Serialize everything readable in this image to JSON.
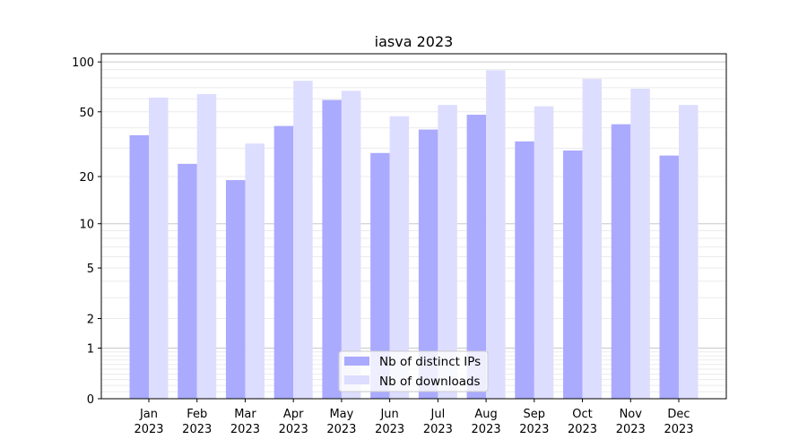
{
  "chart_data": {
    "type": "bar",
    "title": "iasva 2023",
    "xlabel": "",
    "ylabel": "",
    "yscale": "log(1+y)",
    "ylim": [
      0,
      112
    ],
    "yticks": [
      0,
      1,
      2,
      5,
      10,
      20,
      50,
      100
    ],
    "ytick_labels": [
      "0",
      "1",
      "2",
      "5",
      "10",
      "20",
      "50",
      "100"
    ],
    "grid": true,
    "legend_position": "bottom-center",
    "categories": [
      [
        "Jan",
        "2023"
      ],
      [
        "Feb",
        "2023"
      ],
      [
        "Mar",
        "2023"
      ],
      [
        "Apr",
        "2023"
      ],
      [
        "May",
        "2023"
      ],
      [
        "Jun",
        "2023"
      ],
      [
        "Jul",
        "2023"
      ],
      [
        "Aug",
        "2023"
      ],
      [
        "Sep",
        "2023"
      ],
      [
        "Oct",
        "2023"
      ],
      [
        "Nov",
        "2023"
      ],
      [
        "Dec",
        "2023"
      ]
    ],
    "series": [
      {
        "name": "Nb of distinct IPs",
        "color": "#aaaaff",
        "values": [
          36,
          24,
          19,
          41,
          59,
          28,
          39,
          48,
          33,
          29,
          42,
          27
        ]
      },
      {
        "name": "Nb of downloads",
        "color": "#ddddff",
        "values": [
          61,
          64,
          32,
          77,
          67,
          47,
          55,
          89,
          54,
          79,
          69,
          55
        ]
      }
    ]
  }
}
